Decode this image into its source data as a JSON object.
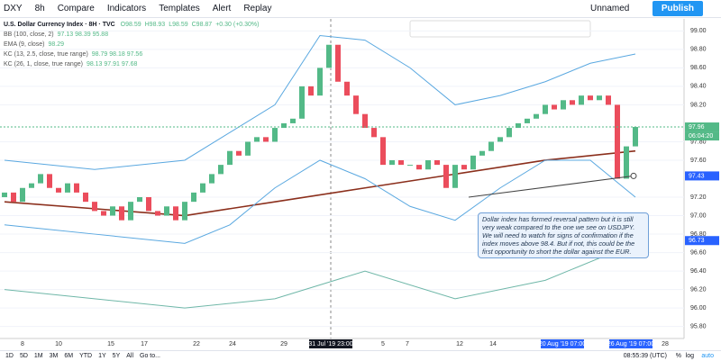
{
  "toolbar": {
    "symbol": "DXY",
    "interval": "8h",
    "compare": "Compare",
    "indicators": "Indicators",
    "templates": "Templates",
    "alert": "Alert",
    "replay": "Replay",
    "layout": "Unnamed",
    "publish": "Publish"
  },
  "legend": {
    "title": "U.S. Dollar Currency Index · 8H · TVC",
    "o": "O98.59",
    "h": "H98.93",
    "l": "L98.59",
    "c": "C98.87",
    "chg": "+0.30 (+0.30%)",
    "rows": [
      {
        "name": "BB (100, close, 2)",
        "vals": "97.13  98.39  95.88"
      },
      {
        "name": "EMA (9, close)",
        "vals": "98.29"
      },
      {
        "name": "KC (13, 2.5, close, true range)",
        "vals": "98.79  98.18  97.56"
      },
      {
        "name": "KC (26, 1, close, true range)",
        "vals": "98.13  97.91  97.68"
      }
    ]
  },
  "chart_data": {
    "type": "candlestick",
    "open": 97.2,
    "closes": [
      97.25,
      97.15,
      97.3,
      97.35,
      97.45,
      97.3,
      97.25,
      97.35,
      97.25,
      97.15,
      97.05,
      97.0,
      97.1,
      96.95,
      97.15,
      97.2,
      97.05,
      97.0,
      97.1,
      96.95,
      97.15,
      97.25,
      97.35,
      97.45,
      97.55,
      97.7,
      97.65,
      97.8,
      97.85,
      97.8,
      97.95,
      98.0,
      98.05,
      98.4,
      98.3,
      98.6,
      98.85,
      98.45,
      98.3,
      98.1,
      97.95,
      97.85,
      97.55,
      97.6,
      97.55,
      97.55,
      97.5,
      97.6,
      97.55,
      97.3,
      97.55,
      97.5,
      97.65,
      97.7,
      97.8,
      97.85,
      97.95,
      98.0,
      98.05,
      98.1,
      98.2,
      98.15,
      98.25,
      98.2,
      98.3,
      98.25,
      98.3,
      98.2,
      97.4,
      97.75,
      97.96
    ],
    "up_color": "#53b987",
    "down_color": "#eb4d5c",
    "lines": [
      {
        "name": "MA",
        "color": "#8b2f1c",
        "x": [
          0,
          20,
          30,
          40,
          50,
          60,
          70
        ],
        "values": [
          97.15,
          97.0,
          97.15,
          97.3,
          97.45,
          97.6,
          97.7
        ]
      },
      {
        "name": "BB upper",
        "color": "#5aa8e0",
        "x": [
          0,
          10,
          20,
          25,
          30,
          35,
          40,
          45,
          50,
          55,
          60,
          65,
          70
        ],
        "values": [
          97.6,
          97.5,
          97.6,
          97.9,
          98.2,
          98.95,
          98.9,
          98.6,
          98.2,
          98.3,
          98.45,
          98.65,
          98.75
        ]
      },
      {
        "name": "BB lower",
        "color": "#5aa8e0",
        "x": [
          0,
          10,
          20,
          25,
          30,
          35,
          40,
          45,
          50,
          55,
          60,
          65,
          70
        ],
        "values": [
          96.9,
          96.8,
          96.7,
          96.9,
          97.3,
          97.6,
          97.4,
          97.1,
          96.95,
          97.3,
          97.6,
          97.6,
          97.2
        ]
      },
      {
        "name": "KC lower",
        "color": "#6fb7a8",
        "x": [
          0,
          10,
          20,
          30,
          40,
          50,
          60,
          70
        ],
        "values": [
          96.2,
          96.1,
          96.0,
          96.1,
          96.4,
          96.1,
          96.3,
          96.7
        ]
      }
    ],
    "ylim": [
      95.67,
      99.13
    ],
    "yticks": [
      {
        "value": 99,
        "label": "99.00"
      },
      {
        "value": 98.8,
        "label": "98.80"
      },
      {
        "value": 98.6,
        "label": "98.60"
      },
      {
        "value": 98.4,
        "label": "98.40"
      },
      {
        "value": 98.2,
        "label": "98.20"
      },
      {
        "value": 97.8,
        "label": "97.80"
      },
      {
        "value": 97.6,
        "label": "97.60"
      },
      {
        "value": 97.2,
        "label": "97.20"
      },
      {
        "value": 97.0,
        "label": "97.00"
      },
      {
        "value": 96.8,
        "label": "96.80"
      },
      {
        "value": 96.6,
        "label": "96.60"
      },
      {
        "value": 96.4,
        "label": "96.40"
      },
      {
        "value": 96.2,
        "label": "96.20"
      },
      {
        "value": 96.0,
        "label": "96.00"
      },
      {
        "value": 95.8,
        "label": "95.80"
      }
    ],
    "price_labels": [
      {
        "value": 97.96,
        "label": "97.96"
      },
      {
        "value": 97.43,
        "label": "97.43"
      },
      {
        "value": 96.73,
        "label": "96.73"
      }
    ],
    "countdown": "06:04:20",
    "time_labels": [
      "8",
      "10",
      "15",
      "17",
      "22",
      "24",
      "29",
      "31 Jul '19  23:00",
      "5",
      "7",
      "12",
      "14",
      "20 Aug '19  07:00",
      "26 Aug '19  07:00",
      "28"
    ],
    "annotation": "Dollar index has formed reversal pattern but it is still very weak compared to the one we see on USDJPY. We will need to watch for signs of confirmation if the index moves above 98.4. But if not, this could be the first opportunity to short the dollar against the EUR."
  },
  "footer": {
    "ranges": [
      "1D",
      "5D",
      "1M",
      "3M",
      "6M",
      "YTD",
      "1Y",
      "5Y",
      "All"
    ],
    "goto": "Go to...",
    "clock": "08:55:39 (UTC)",
    "pct": "%",
    "log": "log",
    "auto": "auto"
  }
}
